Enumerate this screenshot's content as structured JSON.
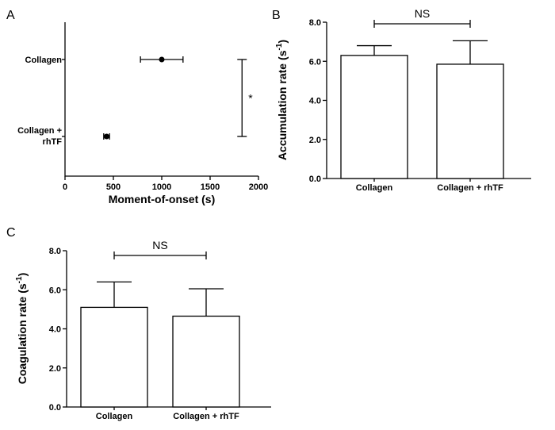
{
  "panel_labels": {
    "a": "A",
    "b": "B",
    "c": "C"
  },
  "chart_data": [
    {
      "type": "scatter",
      "panel": "A",
      "orientation": "horizontal",
      "categories": [
        "Collagen",
        "Collagen + rhTF"
      ],
      "values": [
        1000,
        430
      ],
      "errors": [
        220,
        30
      ],
      "xlabel": "Moment-of-onset (s)",
      "ylabel": "",
      "xlim": [
        0,
        2000
      ],
      "xticks": [
        "0",
        "500",
        "1000",
        "1500",
        "2000"
      ],
      "significance": {
        "label": "*",
        "between": [
          "Collagen",
          "Collagen + rhTF"
        ],
        "x": 1830
      }
    },
    {
      "type": "bar",
      "panel": "B",
      "categories": [
        "Collagen",
        "Collagen + rhTF"
      ],
      "values": [
        6.3,
        5.85
      ],
      "errors": [
        0.5,
        1.2
      ],
      "xlabel": "",
      "ylabel": "Accumulation rate",
      "ylabel_unit_base": "(s",
      "ylabel_unit_exp": "-1",
      "ylabel_unit_close": ")",
      "ylim": [
        0,
        8
      ],
      "yticks": [
        "0.0",
        "2.0",
        "4.0",
        "6.0",
        "8.0"
      ],
      "significance": {
        "label": "NS",
        "between": [
          "Collagen",
          "Collagen + rhTF"
        ]
      }
    },
    {
      "type": "bar",
      "panel": "C",
      "categories": [
        "Collagen",
        "Collagen + rhTF"
      ],
      "values": [
        5.1,
        4.65
      ],
      "errors": [
        1.3,
        1.4
      ],
      "xlabel": "",
      "ylabel": "Coagulation rate",
      "ylabel_unit_base": "(s",
      "ylabel_unit_exp": "-1",
      "ylabel_unit_close": ")",
      "ylim": [
        0,
        8
      ],
      "yticks": [
        "0.0",
        "2.0",
        "4.0",
        "6.0",
        "8.0"
      ],
      "significance": {
        "label": "NS",
        "between": [
          "Collagen",
          "Collagen + rhTF"
        ]
      }
    }
  ]
}
